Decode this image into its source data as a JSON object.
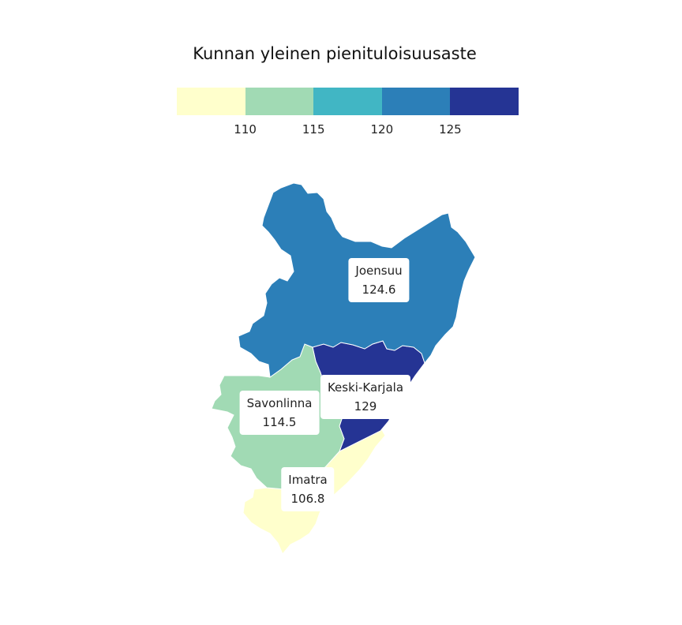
{
  "title": "Kunnan yleinen pienituloisuusaste",
  "legend": {
    "colors": [
      "#ffffcc",
      "#a1dab4",
      "#41b6c4",
      "#2c7fb8",
      "#253494"
    ],
    "ticks": [
      "110",
      "115",
      "120",
      "125"
    ]
  },
  "chart_data": {
    "type": "choropleth",
    "title": "Kunnan yleinen pienituloisuusaste",
    "breaks": [
      110,
      115,
      120,
      125
    ],
    "regions": [
      {
        "name": "Joensuu",
        "value": "124.6",
        "color": "#2c7fb8"
      },
      {
        "name": "Keski-Karjala",
        "value": "129",
        "color": "#253494"
      },
      {
        "name": "Savonlinna",
        "value": "114.5",
        "color": "#a1dab4"
      },
      {
        "name": "Imatra",
        "value": "106.8",
        "color": "#ffffcc"
      }
    ]
  }
}
